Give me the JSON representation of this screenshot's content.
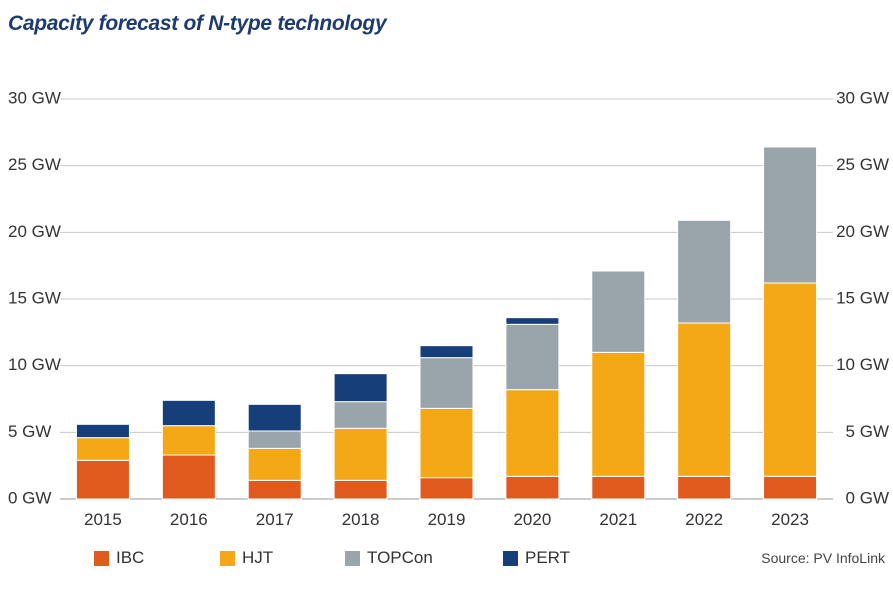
{
  "chart_data": {
    "type": "bar",
    "stacked": true,
    "title": "Capacity forecast of N-type technology",
    "categories": [
      "2015",
      "2016",
      "2017",
      "2018",
      "2019",
      "2020",
      "2021",
      "2022",
      "2023"
    ],
    "series": [
      {
        "name": "IBC",
        "color": "#e05a1e",
        "values": [
          2.9,
          3.3,
          1.4,
          1.4,
          1.6,
          1.7,
          1.7,
          1.7,
          1.7
        ]
      },
      {
        "name": "HJT",
        "color": "#f5a815",
        "values": [
          1.7,
          2.2,
          2.4,
          3.9,
          5.2,
          6.5,
          9.3,
          11.5,
          14.5
        ]
      },
      {
        "name": "TOPCon",
        "color": "#9aa4ab",
        "values": [
          0.0,
          0.0,
          1.3,
          2.0,
          3.8,
          4.9,
          6.1,
          7.7,
          10.2
        ]
      },
      {
        "name": "PERT",
        "color": "#163f7a",
        "values": [
          1.0,
          1.9,
          2.0,
          2.1,
          0.9,
          0.5,
          0.0,
          0.0,
          0.0
        ]
      }
    ],
    "ylim": [
      0,
      30
    ],
    "yticks": [
      "0 GW",
      "5 GW",
      "10 GW",
      "15 GW",
      "20 GW",
      "25 GW",
      "30 GW"
    ],
    "grid": true,
    "legend_position": "bottom-left"
  },
  "source": "Source: PV InfoLink"
}
